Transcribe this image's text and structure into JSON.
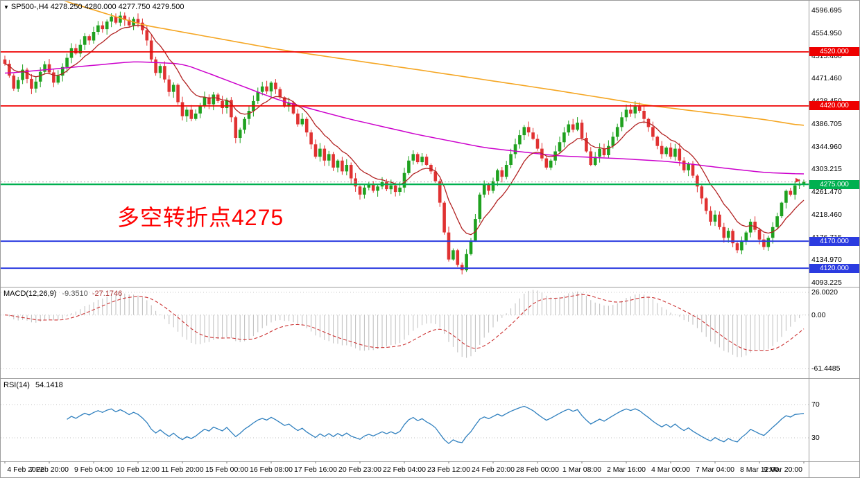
{
  "window": {
    "title": "SP500-,H4 4278.250 4280.000 4277.750 4279.500"
  },
  "chart_data": {
    "type": "candlestick",
    "symbol": "SP500-",
    "timeframe": "H4",
    "quote": {
      "open": 4278.25,
      "high": 4280.0,
      "low": 4277.75,
      "close": 4279.5
    },
    "y_axis": {
      "price_top": 4596.695,
      "price_bottom": 4093.225,
      "labels": [
        "4596.695",
        "4554.950",
        "4513.460",
        "4471.460",
        "4428.450",
        "4386.705",
        "4344.960",
        "4303.215",
        "4261.470",
        "4218.460",
        "4176.715",
        "4134.970",
        "4093.225"
      ]
    },
    "x_labels": [
      "4 Feb 2022",
      "7 Feb 20:00",
      "9 Feb 04:00",
      "10 Feb 12:00",
      "11 Feb 20:00",
      "15 Feb 00:00",
      "16 Feb 08:00",
      "17 Feb 16:00",
      "20 Feb 23:00",
      "22 Feb 04:00",
      "23 Feb 12:00",
      "24 Feb 20:00",
      "28 Feb 00:00",
      "1 Mar 08:00",
      "2 Mar 16:00",
      "4 Mar 00:00",
      "7 Mar 04:00",
      "8 Mar 12:00",
      "9 Mar 20:00"
    ],
    "closes": [
      4498,
      4476,
      4452,
      4468,
      4487,
      4470,
      4452,
      4465,
      4483,
      4497,
      4482,
      4463,
      4476,
      4492,
      4509,
      4527,
      4517,
      4533,
      4549,
      4541,
      4557,
      4569,
      4562,
      4576,
      4585,
      4574,
      4587,
      4579,
      4569,
      4581,
      4574,
      4560,
      4541,
      4506,
      4481,
      4494,
      4469,
      4446,
      4459,
      4427,
      4401,
      4413,
      4396,
      4406,
      4421,
      4436,
      4423,
      4441,
      4429,
      4416,
      4431,
      4399,
      4361,
      4376,
      4396,
      4411,
      4429,
      4446,
      4456,
      4447,
      4463,
      4451,
      4436,
      4419,
      4426,
      4406,
      4386,
      4396,
      4371,
      4349,
      4326,
      4341,
      4319,
      4331,
      4306,
      4319,
      4299,
      4311,
      4286,
      4271,
      4256,
      4269,
      4276,
      4263,
      4271,
      4279,
      4266,
      4273,
      4261,
      4269,
      4296,
      4319,
      4331,
      4316,
      4326,
      4311,
      4299,
      4281,
      4241,
      4186,
      4136,
      4153,
      4126,
      4116,
      4146,
      4171,
      4211,
      4256,
      4276,
      4263,
      4281,
      4301,
      4289,
      4311,
      4331,
      4349,
      4366,
      4381,
      4371,
      4359,
      4341,
      4323,
      4306,
      4319,
      4336,
      4353,
      4371,
      4386,
      4376,
      4389,
      4361,
      4336,
      4311,
      4326,
      4341,
      4329,
      4346,
      4363,
      4381,
      4399,
      4413,
      4406,
      4419,
      4411,
      4396,
      4381,
      4363,
      4346,
      4331,
      4343,
      4326,
      4341,
      4319,
      4301,
      4313,
      4291,
      4271,
      4249,
      4226,
      4206,
      4219,
      4196,
      4176,
      4189,
      4166,
      4153,
      4171,
      4186,
      4206,
      4191,
      4173,
      4159,
      4176,
      4196,
      4216,
      4241,
      4263,
      4256,
      4273,
      4276,
      4279.5
    ],
    "horizontal_lines": [
      {
        "price": 4520.0,
        "label": "4520.000",
        "color": "#EE0000",
        "width": 1.8
      },
      {
        "price": 4420.0,
        "label": "4420.000",
        "color": "#EE0000",
        "width": 1.8
      },
      {
        "price": 4275.0,
        "label": "4275.000",
        "color": "#00B050",
        "width": 2.4
      },
      {
        "price": 4170.0,
        "label": "4170.000",
        "color": "#2B3BE0",
        "width": 2.0
      },
      {
        "price": 4120.0,
        "label": "4120.000",
        "color": "#2B3BE0",
        "width": 2.0
      }
    ],
    "current_price": 4279.5,
    "annotation": {
      "text": "多空转折点4275",
      "color": "#FF0000"
    },
    "moving_averages": [
      {
        "name": "slow-ma",
        "color": "#F5A623",
        "width": 1.6,
        "points": [
          [
            0,
            4648
          ],
          [
            31,
            4570
          ],
          [
            62,
            4524
          ],
          [
            93,
            4487
          ],
          [
            124,
            4449
          ],
          [
            146,
            4420
          ],
          [
            171,
            4395
          ],
          [
            180,
            4383
          ]
        ]
      },
      {
        "name": "medium-ma",
        "color": "#CC00CC",
        "width": 1.5,
        "points": [
          [
            0,
            4480
          ],
          [
            29,
            4502
          ],
          [
            40,
            4498
          ],
          [
            46,
            4480
          ],
          [
            62,
            4430
          ],
          [
            77,
            4397
          ],
          [
            93,
            4367
          ],
          [
            108,
            4343
          ],
          [
            124,
            4328
          ],
          [
            140,
            4322
          ],
          [
            150,
            4317
          ],
          [
            160,
            4307
          ],
          [
            171,
            4297
          ],
          [
            180,
            4294
          ]
        ]
      },
      {
        "name": "fast-ma",
        "color": "#B22222",
        "width": 1.3,
        "period": 10
      }
    ],
    "indicators": {
      "macd": {
        "label": "MACD(12,26,9)",
        "main_value": "-9.3510",
        "signal_value": "-27.1746",
        "fast_period": 12,
        "slow_period": 26,
        "signal_period": 9,
        "axis_labels": [
          "26.0020",
          "0.00",
          "-61.4485"
        ],
        "scale_max": 26.002,
        "scale_min": -61.4485,
        "histogram_color": "#BDBDBD",
        "signal_color": "#CC3333"
      },
      "rsi": {
        "label": "RSI(14)",
        "value_text": "54.1418",
        "period": 14,
        "levels": [
          70,
          30
        ],
        "line_color": "#2E7FBE",
        "level_color": "#C0C0C0"
      }
    },
    "colors": {
      "background": "#FFFFFF",
      "bull": "#1FA11F",
      "bear": "#E03232",
      "separator": "#9A9A9A",
      "price_line_dotted": "#A9A9A9",
      "axis_text": "#000000"
    }
  }
}
